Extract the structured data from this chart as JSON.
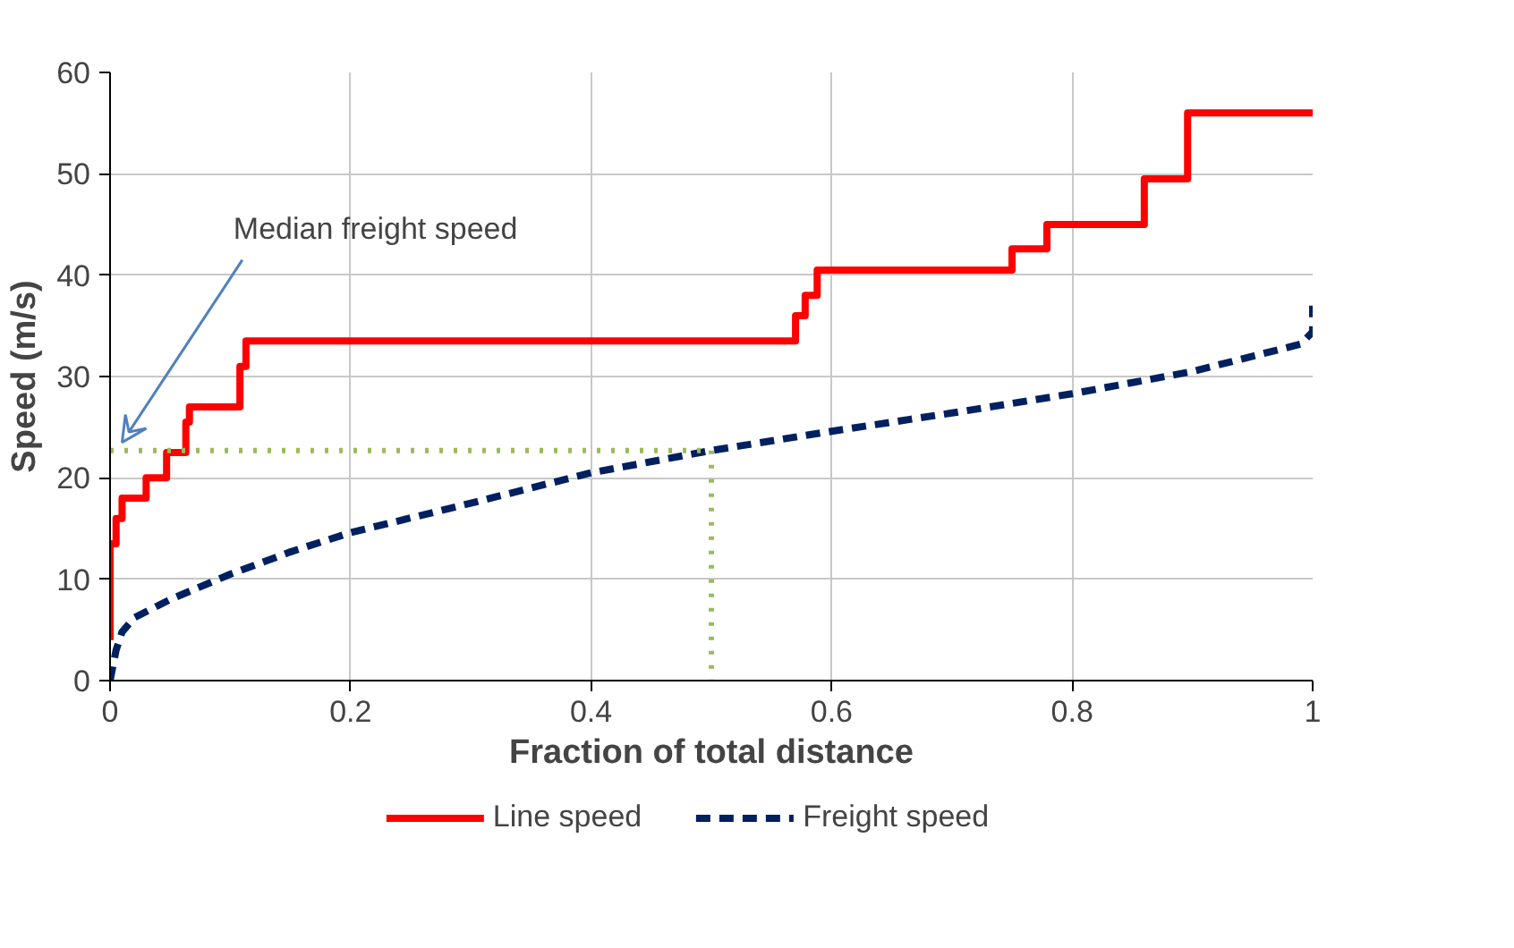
{
  "chart_data": {
    "type": "line",
    "xlabel": "Fraction of total distance",
    "ylabel": "Speed (m/s)",
    "xlim": [
      0,
      1
    ],
    "ylim": [
      0,
      60
    ],
    "xticks": [
      0,
      0.2,
      0.4,
      0.6,
      0.8,
      1
    ],
    "yticks": [
      0,
      10,
      20,
      30,
      40,
      50,
      60
    ],
    "grid": true,
    "legend": "bottom",
    "marker": "none",
    "annotations": [
      {
        "text": "Median freight speed",
        "x": 0.01,
        "y": 23.5
      }
    ],
    "series": [
      {
        "name": "Line speed",
        "color": "#ff0000",
        "line_style": "solid",
        "x": [
          0,
          0,
          0.005,
          0.005,
          0.01,
          0.01,
          0.03,
          0.03,
          0.047,
          0.047,
          0.063,
          0.063,
          0.066,
          0.066,
          0.108,
          0.108,
          0.113,
          0.113,
          0.57,
          0.57,
          0.578,
          0.578,
          0.588,
          0.588,
          0.75,
          0.75,
          0.779,
          0.779,
          0.86,
          0.86,
          0.896,
          0.896,
          1
        ],
        "values": [
          4,
          13.5,
          13.5,
          16,
          16,
          18,
          18,
          20,
          20,
          22.5,
          22.5,
          25.5,
          25.5,
          27,
          27,
          31,
          31,
          33.5,
          33.5,
          36,
          36,
          38,
          38,
          40.5,
          40.5,
          42.6,
          42.6,
          45,
          45,
          49.5,
          49.5,
          56,
          56
        ]
      },
      {
        "name": "Freight speed",
        "color": "#002060",
        "line_style": "dashed",
        "x": [
          0,
          0.005,
          0.01,
          0.02,
          0.05,
          0.1,
          0.15,
          0.2,
          0.3,
          0.4,
          0.5,
          0.6,
          0.7,
          0.8,
          0.9,
          0.95,
          0.99,
          1,
          1
        ],
        "values": [
          0,
          3,
          4.8,
          6.2,
          8,
          10.5,
          12.7,
          14.6,
          17.5,
          20.5,
          22.7,
          24.6,
          26.4,
          28.3,
          30.5,
          32,
          33.2,
          34.4,
          37
        ]
      },
      {
        "color": "#9bbb59",
        "line_style": "dotted",
        "x": [
          0,
          0.5,
          0.5
        ],
        "values": [
          22.7,
          22.7,
          0
        ]
      }
    ]
  }
}
